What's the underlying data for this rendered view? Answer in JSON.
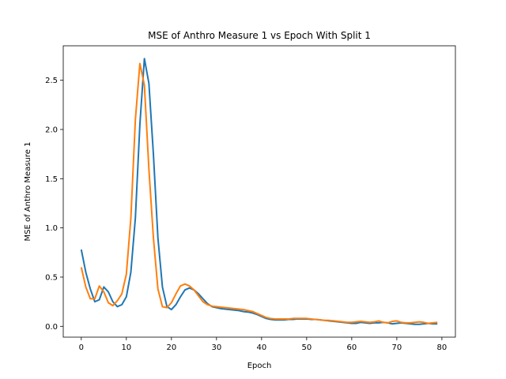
{
  "chart_data": {
    "type": "line",
    "title": "MSE of Anthro Measure 1 vs Epoch With Split 1",
    "xlabel": "Epoch",
    "ylabel": "MSE of Anthro Measure 1",
    "xlim": [
      -4,
      83
    ],
    "ylim": [
      -0.11,
      2.85
    ],
    "xticks": [
      0,
      10,
      20,
      30,
      40,
      50,
      60,
      70,
      80
    ],
    "yticks": [
      0.0,
      0.5,
      1.0,
      1.5,
      2.0,
      2.5
    ],
    "xtick_labels": [
      "0",
      "10",
      "20",
      "30",
      "40",
      "50",
      "60",
      "70",
      "80"
    ],
    "ytick_labels": [
      "0.0",
      "0.5",
      "1.0",
      "1.5",
      "2.0",
      "2.5"
    ],
    "grid": false,
    "series": [
      {
        "color": "#1f77b4",
        "x": [
          0,
          1,
          2,
          3,
          4,
          5,
          6,
          7,
          8,
          9,
          10,
          11,
          12,
          13,
          14,
          15,
          16,
          17,
          18,
          19,
          20,
          21,
          22,
          23,
          24,
          25,
          26,
          27,
          28,
          29,
          30,
          31,
          32,
          33,
          34,
          35,
          36,
          37,
          38,
          39,
          40,
          41,
          42,
          43,
          44,
          45,
          46,
          47,
          48,
          49,
          50,
          51,
          52,
          53,
          54,
          55,
          56,
          57,
          58,
          59,
          60,
          61,
          62,
          63,
          64,
          65,
          66,
          67,
          68,
          69,
          70,
          71,
          72,
          73,
          74,
          75,
          76,
          77,
          78,
          79
        ],
        "y": [
          0.78,
          0.55,
          0.38,
          0.25,
          0.27,
          0.4,
          0.35,
          0.25,
          0.2,
          0.22,
          0.3,
          0.55,
          1.1,
          2.05,
          2.72,
          2.47,
          1.75,
          0.9,
          0.4,
          0.2,
          0.17,
          0.22,
          0.3,
          0.37,
          0.39,
          0.37,
          0.33,
          0.28,
          0.23,
          0.2,
          0.19,
          0.18,
          0.175,
          0.17,
          0.165,
          0.16,
          0.15,
          0.145,
          0.135,
          0.12,
          0.1,
          0.08,
          0.07,
          0.065,
          0.065,
          0.065,
          0.07,
          0.07,
          0.075,
          0.075,
          0.075,
          0.07,
          0.07,
          0.065,
          0.06,
          0.055,
          0.05,
          0.045,
          0.04,
          0.035,
          0.03,
          0.03,
          0.04,
          0.035,
          0.03,
          0.035,
          0.035,
          0.04,
          0.035,
          0.025,
          0.03,
          0.035,
          0.03,
          0.025,
          0.02,
          0.02,
          0.025,
          0.03,
          0.025,
          0.025
        ]
      },
      {
        "color": "#ff7f0e",
        "x": [
          0,
          1,
          2,
          3,
          4,
          5,
          6,
          7,
          8,
          9,
          10,
          11,
          12,
          13,
          14,
          15,
          16,
          17,
          18,
          19,
          20,
          21,
          22,
          23,
          24,
          25,
          26,
          27,
          28,
          29,
          30,
          31,
          32,
          33,
          34,
          35,
          36,
          37,
          38,
          39,
          40,
          41,
          42,
          43,
          44,
          45,
          46,
          47,
          48,
          49,
          50,
          51,
          52,
          53,
          54,
          55,
          56,
          57,
          58,
          59,
          60,
          61,
          62,
          63,
          64,
          65,
          66,
          67,
          68,
          69,
          70,
          71,
          72,
          73,
          74,
          75,
          76,
          77,
          78,
          79
        ],
        "y": [
          0.6,
          0.4,
          0.28,
          0.28,
          0.41,
          0.35,
          0.24,
          0.21,
          0.26,
          0.33,
          0.53,
          1.1,
          2.1,
          2.67,
          2.45,
          1.6,
          0.9,
          0.38,
          0.2,
          0.19,
          0.24,
          0.33,
          0.41,
          0.43,
          0.41,
          0.37,
          0.31,
          0.25,
          0.22,
          0.205,
          0.2,
          0.195,
          0.19,
          0.185,
          0.18,
          0.175,
          0.17,
          0.16,
          0.15,
          0.13,
          0.11,
          0.09,
          0.08,
          0.075,
          0.075,
          0.075,
          0.075,
          0.08,
          0.08,
          0.08,
          0.08,
          0.075,
          0.07,
          0.065,
          0.06,
          0.06,
          0.055,
          0.05,
          0.045,
          0.04,
          0.04,
          0.045,
          0.05,
          0.045,
          0.04,
          0.045,
          0.055,
          0.04,
          0.035,
          0.05,
          0.055,
          0.04,
          0.035,
          0.035,
          0.04,
          0.045,
          0.04,
          0.03,
          0.035,
          0.04
        ]
      }
    ]
  }
}
